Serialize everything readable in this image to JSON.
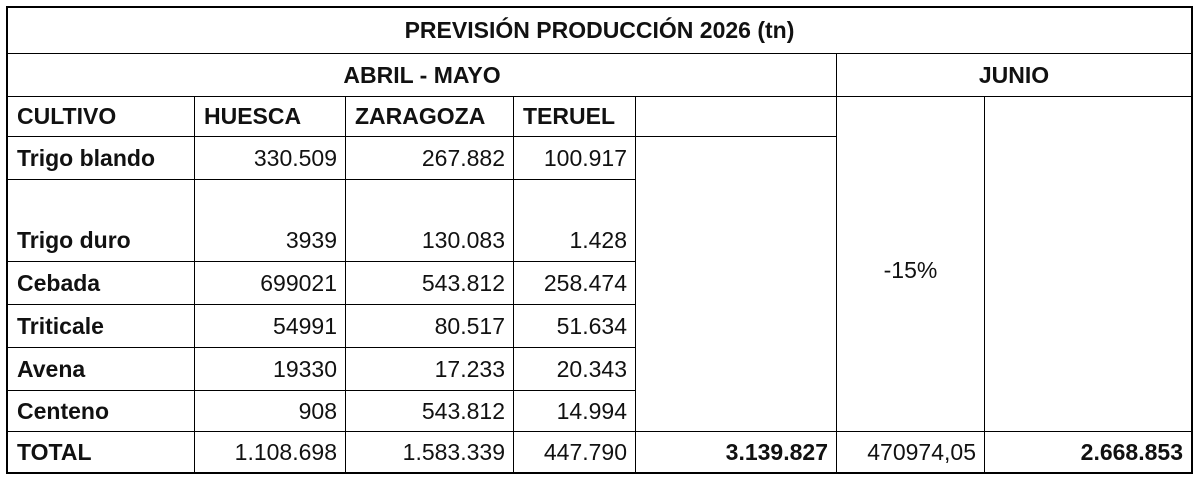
{
  "title": "PREVISIÓN PRODUCCIÓN 2026 (tn)",
  "group_left": "ABRIL - MAYO",
  "group_right": "JUNIO",
  "headers": {
    "cultivo": "CULTIVO",
    "huesca": "HUESCA",
    "zaragoza": "ZARAGOZA",
    "teruel": "TERUEL"
  },
  "rows": [
    {
      "cultivo": "Trigo blando",
      "huesca": "330.509",
      "zaragoza": "267.882",
      "teruel": "100.917"
    },
    {
      "cultivo": "Trigo duro",
      "huesca": "3939",
      "zaragoza": "130.083",
      "teruel": "1.428"
    },
    {
      "cultivo": "Cebada",
      "huesca": "699021",
      "zaragoza": "543.812",
      "teruel": "258.474"
    },
    {
      "cultivo": "Triticale",
      "huesca": "54991",
      "zaragoza": "80.517",
      "teruel": "51.634"
    },
    {
      "cultivo": "Avena",
      "huesca": "19330",
      "zaragoza": "17.233",
      "teruel": "20.343"
    },
    {
      "cultivo": "Centeno",
      "huesca": "908",
      "zaragoza": "543.812",
      "teruel": "14.994"
    }
  ],
  "junio_pct": "-15%",
  "total": {
    "label": "TOTAL",
    "huesca": "1.108.698",
    "zaragoza": "1.583.339",
    "teruel": "447.790",
    "abril_mayo": "3.139.827",
    "reduction": "470974,05",
    "junio": "2.668.853"
  }
}
